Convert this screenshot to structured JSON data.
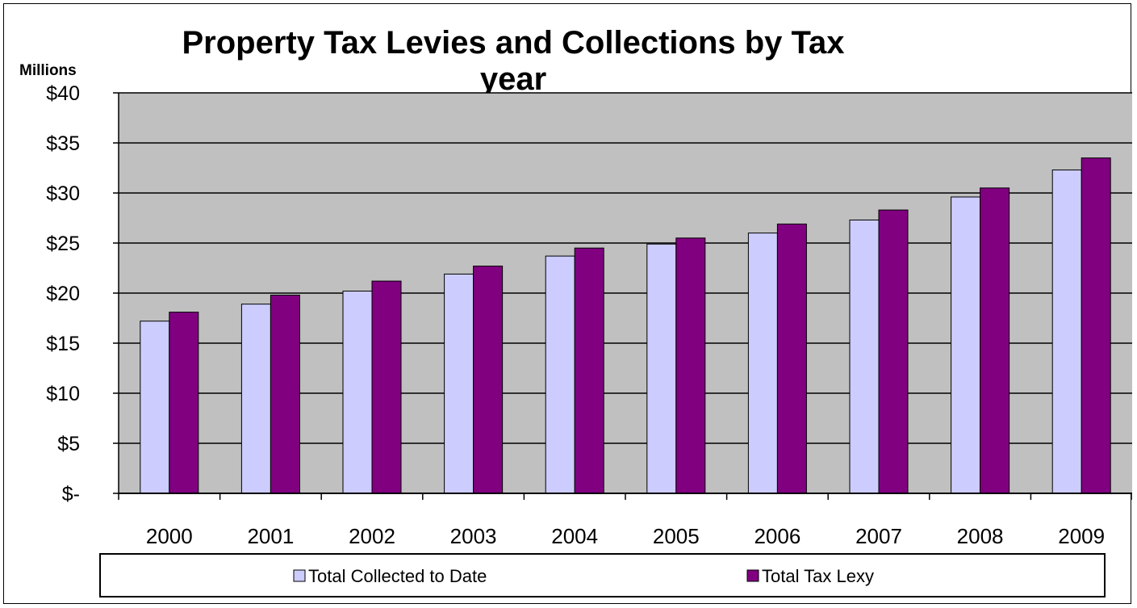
{
  "chart_data": {
    "type": "bar",
    "title_line1": "Property Tax Levies and Collections by Tax",
    "title_line2": "year",
    "unit_label": "Millions",
    "categories": [
      "2000",
      "2001",
      "2002",
      "2003",
      "2004",
      "2005",
      "2006",
      "2007",
      "2008",
      "2009"
    ],
    "series": [
      {
        "name": "Total Collected to Date",
        "color": "#ccccff",
        "values": [
          17.2,
          18.9,
          20.2,
          21.9,
          23.7,
          24.9,
          26.0,
          27.3,
          29.6,
          32.3
        ]
      },
      {
        "name": "Total Tax Lexy",
        "color": "#800080",
        "values": [
          18.1,
          19.8,
          21.2,
          22.7,
          24.5,
          25.5,
          26.9,
          28.3,
          30.5,
          33.5
        ]
      }
    ],
    "y_tick_labels": [
      "$-",
      "$5",
      "$10",
      "$15",
      "$20",
      "$25",
      "$30",
      "$35",
      "$40"
    ],
    "ylim": [
      0,
      40
    ],
    "y_step": 5,
    "plot_background": "#c0c0c0",
    "grid": true,
    "legend_position": "bottom"
  }
}
